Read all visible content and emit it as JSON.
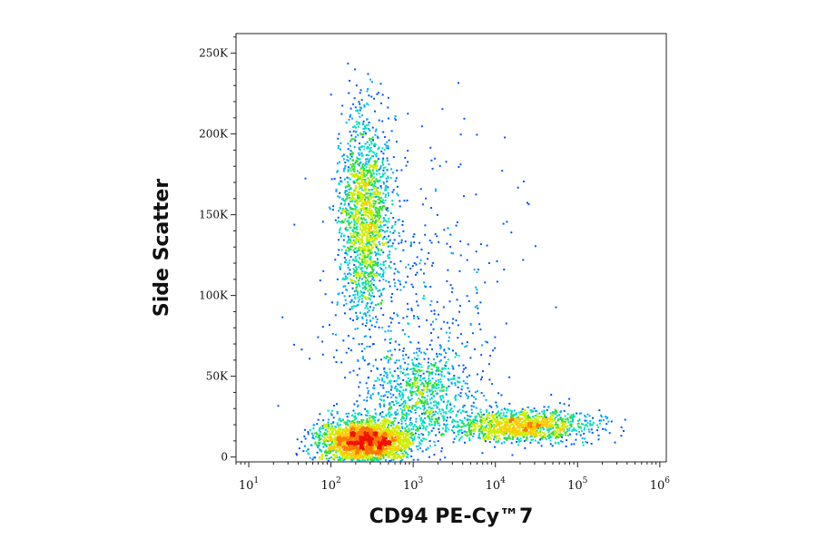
{
  "chart_data": {
    "type": "scatter",
    "title": "",
    "xlabel": "CD94 PE-Cy™7",
    "ylabel": "Side Scatter",
    "x_scale": "log",
    "xlim": [
      7,
      1200000
    ],
    "ylim": [
      -3000,
      262144
    ],
    "x_ticks": [
      {
        "value": 10,
        "base": "10",
        "exp": "1"
      },
      {
        "value": 100,
        "base": "10",
        "exp": "2"
      },
      {
        "value": 1000,
        "base": "10",
        "exp": "3"
      },
      {
        "value": 10000,
        "base": "10",
        "exp": "4"
      },
      {
        "value": 100000,
        "base": "10",
        "exp": "5"
      },
      {
        "value": 1000000,
        "base": "10",
        "exp": "6"
      }
    ],
    "y_ticks": [
      {
        "value": 0,
        "label": "0"
      },
      {
        "value": 50000,
        "label": "50K"
      },
      {
        "value": 100000,
        "label": "100K"
      },
      {
        "value": 150000,
        "label": "150K"
      },
      {
        "value": 200000,
        "label": "200K"
      },
      {
        "value": 250000,
        "label": "250K"
      }
    ],
    "colormap": [
      "#0000cc",
      "#0055ff",
      "#00aaff",
      "#00e0c0",
      "#33dd33",
      "#ccee00",
      "#ffcc00",
      "#ff7700",
      "#ee1100"
    ],
    "populations": [
      {
        "name": "",
        "x_center": 260,
        "y_center": 10000,
        "x_log_sd": 0.28,
        "y_sd": 7000,
        "events": 2600
      },
      {
        "name": "",
        "x_center": 250,
        "y_center": 150000,
        "x_log_sd": 0.15,
        "y_sd": 30000,
        "events": 1700
      },
      {
        "name": "",
        "x_center": 20000,
        "y_center": 20000,
        "x_log_sd": 0.42,
        "y_sd": 5000,
        "events": 1300
      },
      {
        "name": "",
        "x_center": 1200,
        "y_center": 40000,
        "x_log_sd": 0.3,
        "y_sd": 14000,
        "events": 700
      },
      {
        "name": "",
        "x_center": 1000,
        "y_center": 90000,
        "x_log_sd": 0.55,
        "y_sd": 50000,
        "events": 500
      }
    ],
    "grid": false,
    "legend": "none"
  }
}
